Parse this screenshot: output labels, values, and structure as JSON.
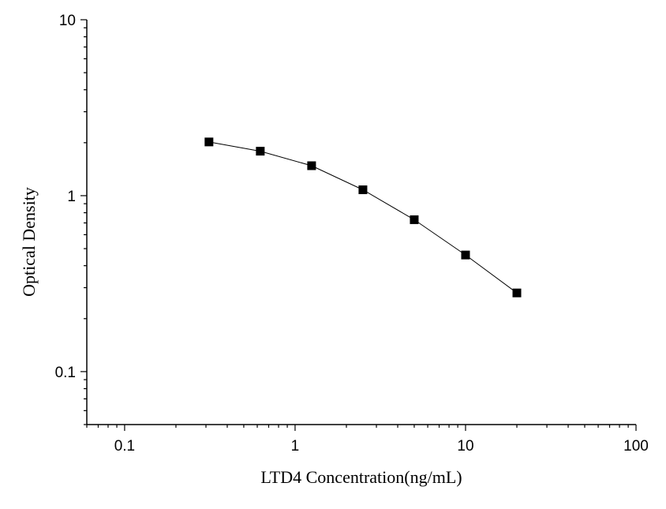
{
  "chart_data": {
    "type": "scatter",
    "title": "",
    "xlabel": "LTD4  Concentration(ng/mL)",
    "ylabel": "Optical Density",
    "x_scale": "log",
    "y_scale": "log",
    "xlim": [
      0.06,
      100
    ],
    "ylim": [
      0.05,
      10
    ],
    "x_ticks": [
      0.1,
      1,
      10,
      100
    ],
    "x_tick_labels": [
      "0.1",
      "1",
      "10",
      "100"
    ],
    "y_ticks": [
      0.1,
      1,
      10
    ],
    "y_tick_labels": [
      "0.1",
      "1",
      "10"
    ],
    "grid": false,
    "legend": "none",
    "series": [
      {
        "x": [
          0.3125,
          0.625,
          1.25,
          2.5,
          5,
          10,
          20
        ],
        "y": [
          2.02,
          1.79,
          1.48,
          1.08,
          0.73,
          0.46,
          0.28
        ],
        "marker": "square",
        "connected": true,
        "color": "#000000"
      }
    ]
  }
}
